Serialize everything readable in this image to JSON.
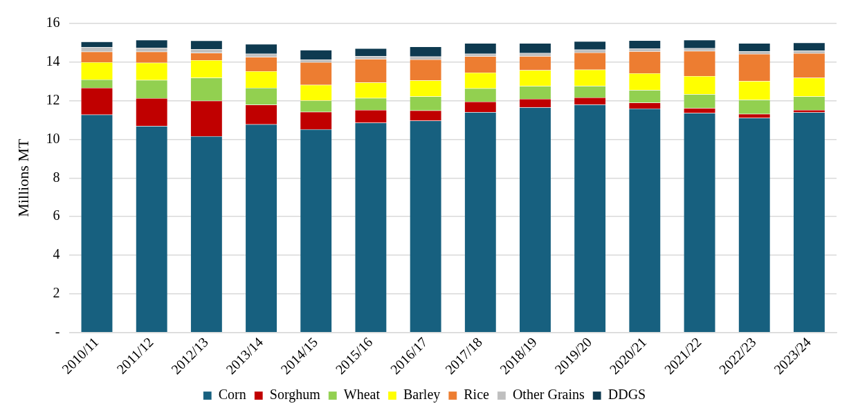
{
  "chart_data": {
    "type": "bar",
    "stacked": true,
    "ylabel": "Millions MT",
    "categories": [
      "2010/11",
      "2011/12",
      "2012/13",
      "2013/14",
      "2014/15",
      "2015/16",
      "2016/17",
      "2017/18",
      "2018/19",
      "2019/20",
      "2020/21",
      "2021/22",
      "2022/23",
      "2023/24"
    ],
    "series": [
      {
        "name": "Corn",
        "color": "#17607f",
        "values": [
          11.28,
          10.69,
          10.16,
          10.78,
          10.52,
          10.86,
          10.97,
          11.41,
          11.66,
          11.8,
          11.59,
          11.36,
          11.11,
          11.4
        ]
      },
      {
        "name": "Sorghum",
        "color": "#c00000",
        "values": [
          1.39,
          1.44,
          1.84,
          1.01,
          0.9,
          0.66,
          0.53,
          0.54,
          0.44,
          0.37,
          0.31,
          0.26,
          0.21,
          0.12
        ]
      },
      {
        "name": "Wheat",
        "color": "#92d050",
        "values": [
          0.43,
          0.94,
          1.19,
          0.88,
          0.59,
          0.62,
          0.72,
          0.69,
          0.66,
          0.6,
          0.65,
          0.72,
          0.73,
          0.7
        ]
      },
      {
        "name": "Barley",
        "color": "#ffff00",
        "values": [
          0.89,
          0.9,
          0.91,
          0.86,
          0.81,
          0.81,
          0.83,
          0.82,
          0.82,
          0.84,
          0.87,
          0.94,
          0.97,
          0.97
        ]
      },
      {
        "name": "Rice",
        "color": "#ed7d31",
        "values": [
          0.55,
          0.57,
          0.38,
          0.73,
          1.17,
          1.21,
          1.09,
          0.84,
          0.73,
          0.89,
          1.14,
          1.3,
          1.4,
          1.27
        ]
      },
      {
        "name": "Other Grains",
        "color": "#bfbfbf",
        "values": [
          0.23,
          0.21,
          0.19,
          0.17,
          0.15,
          0.15,
          0.15,
          0.13,
          0.16,
          0.15,
          0.15,
          0.14,
          0.14,
          0.13
        ]
      },
      {
        "name": "DDGS",
        "color": "#0e3a50",
        "values": [
          0.29,
          0.4,
          0.44,
          0.5,
          0.49,
          0.4,
          0.51,
          0.55,
          0.51,
          0.43,
          0.41,
          0.43,
          0.42,
          0.42
        ]
      }
    ],
    "ylim": [
      0,
      16
    ],
    "yticks": [
      {
        "value": 0,
        "label": "-"
      },
      2,
      4,
      6,
      8,
      10,
      12,
      14,
      16
    ],
    "grid": "y",
    "legend": "bottom"
  }
}
